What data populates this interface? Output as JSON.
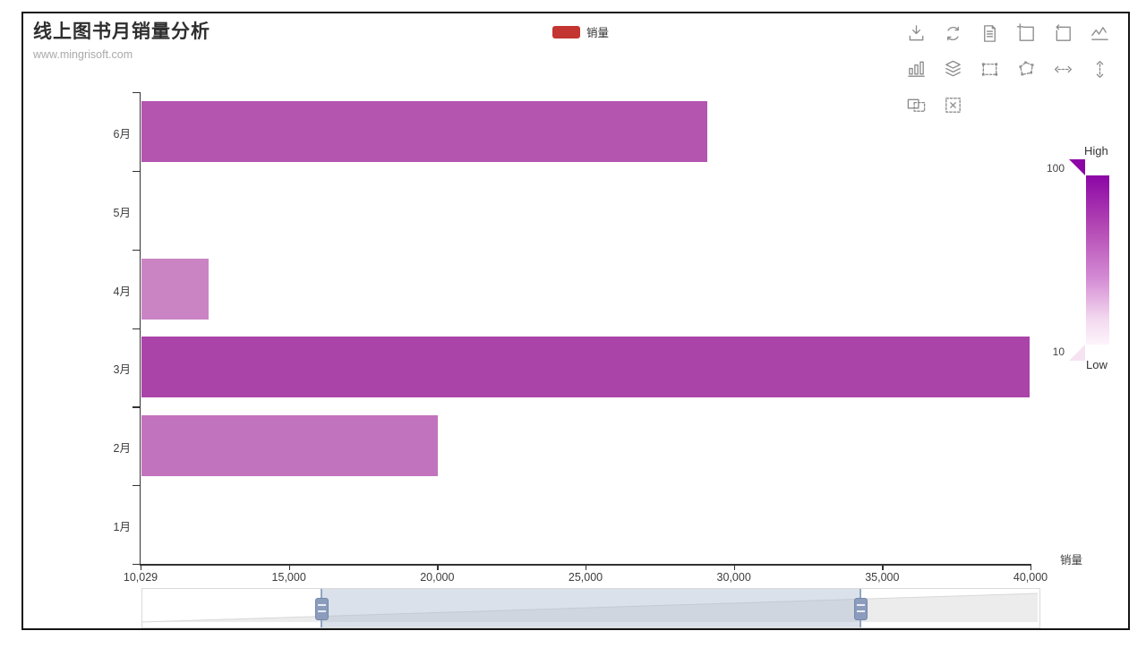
{
  "title": {
    "text": "线上图书月销量分析",
    "subtext": "www.mingrisoft.com"
  },
  "legend": {
    "items": [
      {
        "label": "销量",
        "color": "#c23531"
      }
    ]
  },
  "toolbox": {
    "rows": [
      [
        "save-image",
        "restore",
        "data-view",
        "zoom-in",
        "zoom-back",
        "magic-line"
      ],
      [
        "magic-bar",
        "magic-stack",
        "brush-rect",
        "brush-polygon",
        "brush-line-x",
        "brush-line-y"
      ],
      [
        "brush-keep",
        "brush-clear"
      ]
    ]
  },
  "visual_map": {
    "label_high": "High",
    "label_low": "Low",
    "value_high": "100",
    "value_low": "10",
    "color_high": "#8b06a5",
    "color_low": "#fdf4fb"
  },
  "x_axis": {
    "name": "销量",
    "ticks": [
      "10,029",
      "15,000",
      "20,000",
      "25,000",
      "30,000",
      "35,000",
      "40,000"
    ]
  },
  "y_axis": {
    "categories_bottom_to_top": [
      "1月",
      "2月",
      "3月",
      "4月",
      "5月",
      "6月"
    ]
  },
  "data_zoom": {
    "start_pct": 20,
    "end_pct": 80
  },
  "chart_data": {
    "type": "bar",
    "orientation": "horizontal",
    "title": "线上图书月销量分析",
    "subtitle": "www.mingrisoft.com",
    "xlabel": "销量",
    "xlim": [
      10029,
      40000
    ],
    "x_tick_values": [
      10029,
      15000,
      20000,
      25000,
      30000,
      35000,
      40000
    ],
    "categories": [
      "1月",
      "2月",
      "3月",
      "4月",
      "5月",
      "6月"
    ],
    "series": [
      {
        "name": "销量",
        "values": [
          null,
          20000,
          39950,
          12300,
          null,
          29100
        ],
        "bar_colors": [
          null,
          "#c273bd",
          "#ab44a9",
          "#ca84c4",
          null,
          "#b455af"
        ]
      }
    ],
    "legend_position": "top-center",
    "grid": false,
    "visual_map_range": [
      10,
      100
    ]
  }
}
